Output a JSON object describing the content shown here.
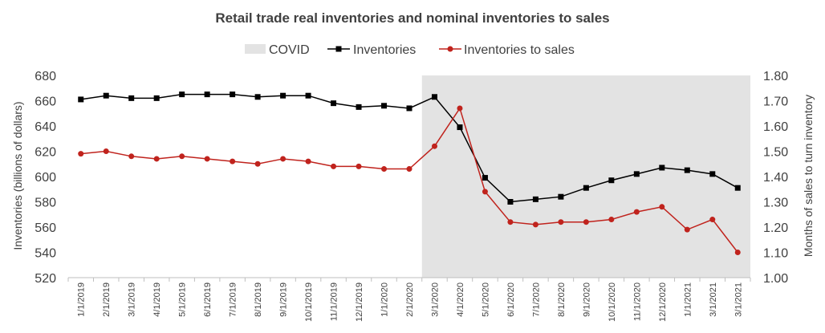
{
  "chart_data": {
    "type": "line",
    "title": "Retail trade real inventories and nominal inventories to sales",
    "ylabel_left": "Inventories (billions of dollars)",
    "ylabel_right": "Months of sales to turn inventory",
    "ylim_left": [
      520,
      680
    ],
    "yticks_left": [
      "520",
      "540",
      "560",
      "580",
      "600",
      "620",
      "640",
      "660",
      "680"
    ],
    "ylim_right": [
      1.0,
      1.8
    ],
    "yticks_right": [
      "1.00",
      "1.10",
      "1.20",
      "1.30",
      "1.40",
      "1.50",
      "1.60",
      "1.70",
      "1.80"
    ],
    "categories": [
      "1/1/2019",
      "2/1/2019",
      "3/1/2019",
      "4/1/2019",
      "5/1/2019",
      "6/1/2019",
      "7/1/2019",
      "8/1/2019",
      "9/1/2019",
      "10/1/2019",
      "11/1/2019",
      "12/1/2019",
      "1/1/2020",
      "2/1/2020",
      "3/1/2020",
      "4/1/2020",
      "5/1/2020",
      "6/1/2020",
      "7/1/2020",
      "8/1/2020",
      "9/1/2020",
      "10/1/2020",
      "11/1/2020",
      "12/1/2020",
      "1/1/2021",
      "3/1/2021",
      "3/1/2021"
    ],
    "covid_start_index": 14,
    "legend_position": "top",
    "grid": false,
    "series": [
      {
        "name": "Inventories",
        "axis": "left",
        "color": "#000000",
        "marker": "square",
        "values": [
          661,
          664,
          662,
          662,
          665,
          665,
          665,
          663,
          664,
          664,
          658,
          655,
          656,
          654,
          663,
          639,
          599,
          580,
          582,
          584,
          591,
          597,
          602,
          607,
          605,
          602,
          591
        ]
      },
      {
        "name": "Inventories to sales",
        "axis": "right",
        "color": "#c0231d",
        "marker": "circle",
        "values": [
          1.49,
          1.5,
          1.48,
          1.47,
          1.48,
          1.47,
          1.46,
          1.45,
          1.47,
          1.46,
          1.44,
          1.44,
          1.43,
          1.43,
          1.52,
          1.67,
          1.34,
          1.22,
          1.21,
          1.22,
          1.22,
          1.23,
          1.26,
          1.28,
          1.19,
          1.23,
          1.1
        ]
      }
    ],
    "shaded_region": {
      "name": "COVID",
      "color": "#e3e3e3"
    }
  }
}
